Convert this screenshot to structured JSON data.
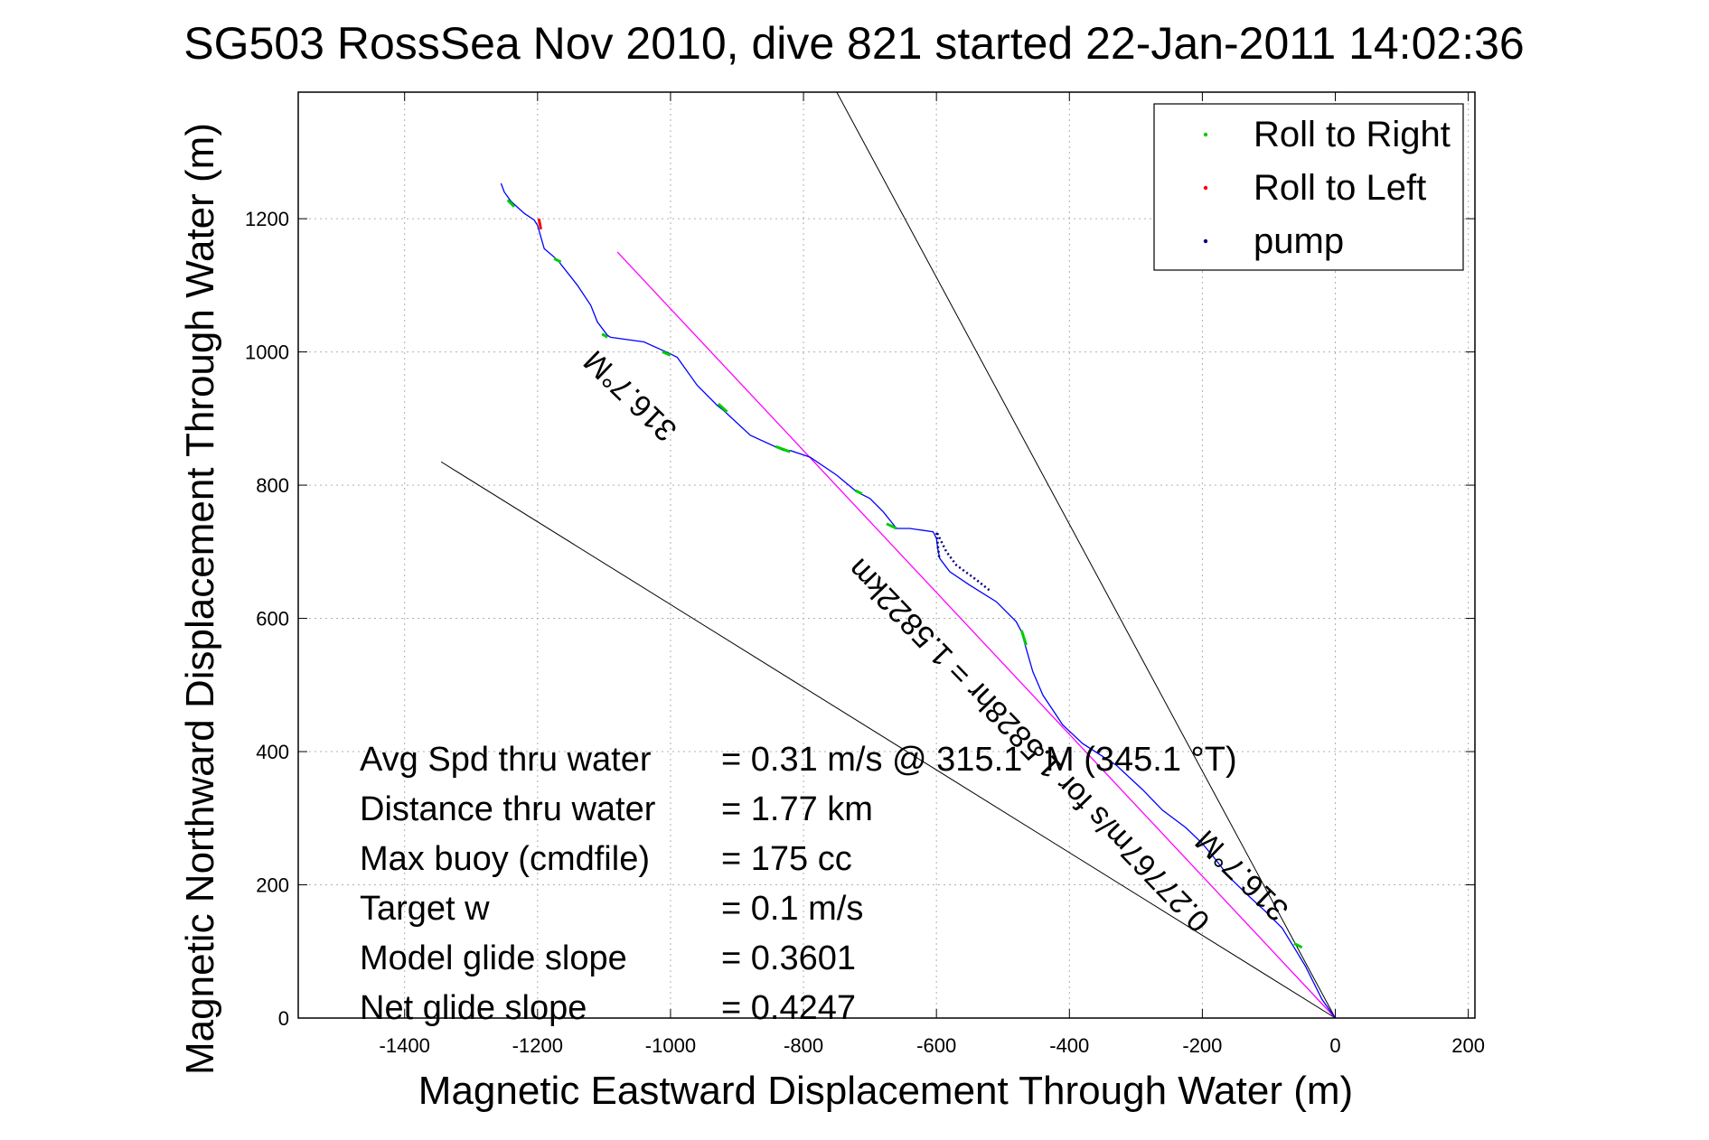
{
  "chart_data": {
    "type": "line",
    "title": "SG503 RossSea Nov 2010, dive 821 started 22-Jan-2011 14:02:36",
    "xlabel": "Magnetic Eastward Displacement Through Water (m)",
    "ylabel": "Magnetic Northward Displacement Through Water (m)",
    "xlim": [
      -1560,
      210
    ],
    "ylim": [
      0,
      1390
    ],
    "xticks": [
      -1400,
      -1200,
      -1000,
      -800,
      -600,
      -400,
      -200,
      0,
      200
    ],
    "yticks": [
      0,
      200,
      400,
      600,
      800,
      1000,
      1200
    ],
    "grid": true,
    "legend_position": "top-right",
    "legend": [
      {
        "label": "Roll to Right",
        "color": "#00cc00"
      },
      {
        "label": "Roll to Left",
        "color": "#ff0000"
      },
      {
        "label": "pump",
        "color": "#000080"
      }
    ],
    "track": {
      "color": "#0000ff",
      "points": [
        [
          0,
          0
        ],
        [
          -20,
          28
        ],
        [
          -45,
          78
        ],
        [
          -62,
          106
        ],
        [
          -80,
          135
        ],
        [
          -105,
          160
        ],
        [
          -130,
          183
        ],
        [
          -160,
          212
        ],
        [
          -180,
          238
        ],
        [
          -200,
          262
        ],
        [
          -225,
          286
        ],
        [
          -260,
          312
        ],
        [
          -290,
          343
        ],
        [
          -330,
          380
        ],
        [
          -380,
          412
        ],
        [
          -410,
          440
        ],
        [
          -440,
          485
        ],
        [
          -455,
          520
        ],
        [
          -468,
          565
        ],
        [
          -472,
          580
        ],
        [
          -480,
          595
        ],
        [
          -510,
          625
        ],
        [
          -550,
          650
        ],
        [
          -580,
          670
        ],
        [
          -595,
          690
        ],
        [
          -598,
          705
        ],
        [
          -600,
          720
        ],
        [
          -605,
          730
        ],
        [
          -640,
          735
        ],
        [
          -660,
          735
        ],
        [
          -680,
          760
        ],
        [
          -700,
          780
        ],
        [
          -720,
          790
        ],
        [
          -750,
          815
        ],
        [
          -790,
          842
        ],
        [
          -820,
          852
        ],
        [
          -830,
          852
        ],
        [
          -880,
          875
        ],
        [
          -920,
          912
        ],
        [
          -930,
          920
        ],
        [
          -960,
          950
        ],
        [
          -990,
          992
        ],
        [
          -1000,
          997
        ],
        [
          -1040,
          1015
        ],
        [
          -1090,
          1022
        ],
        [
          -1095,
          1025
        ],
        [
          -1110,
          1045
        ],
        [
          -1120,
          1070
        ],
        [
          -1140,
          1100
        ],
        [
          -1170,
          1138
        ],
        [
          -1190,
          1155
        ],
        [
          -1200,
          1190
        ],
        [
          -1205,
          1198
        ],
        [
          -1220,
          1208
        ],
        [
          -1240,
          1226
        ],
        [
          -1250,
          1240
        ],
        [
          -1255,
          1253
        ]
      ]
    },
    "roll_right_segments": [
      [
        [
          -50,
          106
        ],
        [
          -62,
          112
        ]
      ],
      [
        [
          -465,
          560
        ],
        [
          -472,
          582
        ]
      ],
      [
        [
          -660,
          735
        ],
        [
          -675,
          742
        ]
      ],
      [
        [
          -712,
          787
        ],
        [
          -722,
          792
        ]
      ],
      [
        [
          -820,
          850
        ],
        [
          -842,
          858
        ]
      ],
      [
        [
          -915,
          910
        ],
        [
          -928,
          922
        ]
      ],
      [
        [
          -1000,
          995
        ],
        [
          -1012,
          1000
        ]
      ],
      [
        [
          -1095,
          1022
        ],
        [
          -1103,
          1027
        ]
      ],
      [
        [
          -1165,
          1135
        ],
        [
          -1175,
          1140
        ]
      ],
      [
        [
          -1235,
          1218
        ],
        [
          -1245,
          1228
        ]
      ]
    ],
    "roll_left_segments": [
      [
        [
          -1195,
          1184
        ],
        [
          -1198,
          1200
        ]
      ]
    ],
    "pump_segments": [
      [
        [
          -596,
          692
        ],
        [
          -600,
          730
        ],
        [
          -585,
          700
        ],
        [
          -570,
          680
        ],
        [
          -540,
          658
        ],
        [
          -520,
          642
        ]
      ]
    ],
    "course_line": {
      "color": "#ff00ff",
      "from": [
        0,
        0
      ],
      "to": [
        -1080,
        1150
      ]
    },
    "bearing_lines": [
      {
        "from": [
          0,
          0
        ],
        "to": [
          -750,
          1390
        ]
      },
      {
        "from": [
          0,
          0
        ],
        "to": [
          -1345,
          835
        ]
      }
    ],
    "annotations": [
      {
        "text": "316.7°M",
        "x": -1050,
        "y": 945,
        "angle": 224
      },
      {
        "text": "0.27767m/s for 1.5828hr = 1.5822km",
        "x": -450,
        "y": 420,
        "angle": 226
      },
      {
        "text": "316.7°M",
        "x": -130,
        "y": 225,
        "angle": 224
      }
    ],
    "stats": [
      {
        "label": "Avg Spd thru water",
        "value": "=  0.31 m/s @ 315.1 °M (345.1 °T)"
      },
      {
        "label": "Distance thru water",
        "value": "=  1.77 km"
      },
      {
        "label": "Max buoy (cmdfile)",
        "value": "= 175 cc"
      },
      {
        "label": "Target w",
        "value": "= 0.1 m/s"
      },
      {
        "label": "Model glide slope",
        "value": "= 0.3601"
      },
      {
        "label": "Net glide slope",
        "value": "= 0.4247"
      }
    ]
  }
}
